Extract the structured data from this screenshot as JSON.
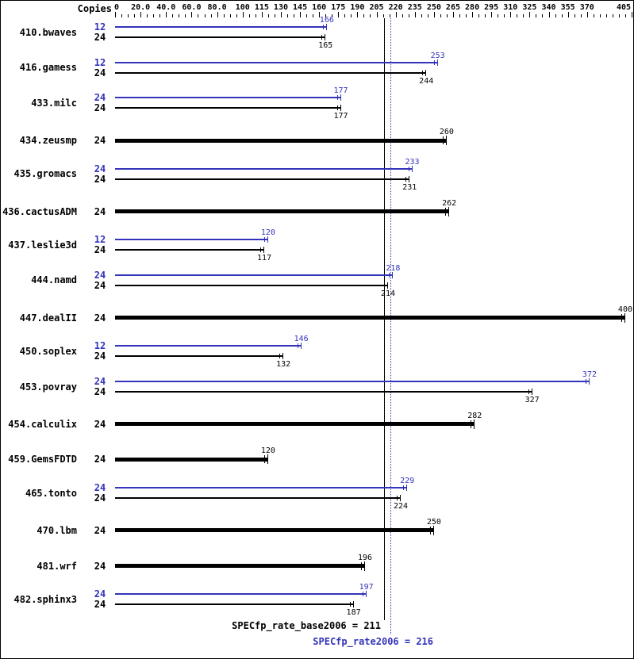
{
  "chart_data": {
    "type": "bar",
    "orientation": "horizontal",
    "copies_header": "Copies",
    "axis": {
      "min": 0,
      "max": 405,
      "major_ticks": [
        0,
        20,
        40,
        60,
        80,
        100,
        115,
        130,
        145,
        160,
        175,
        190,
        205,
        220,
        235,
        250,
        265,
        280,
        295,
        310,
        325,
        340,
        355,
        370,
        405
      ],
      "tick_labels": [
        "0",
        "20.0",
        "40.0",
        "60.0",
        "80.0",
        "100",
        "115",
        "130",
        "145",
        "160",
        "175",
        "190",
        "205",
        "220",
        "235",
        "250",
        "265",
        "280",
        "295",
        "310",
        "325",
        "340",
        "355",
        "370",
        "405"
      ],
      "minor_tick_step": 5,
      "grid": false
    },
    "series_legend": {
      "peak_color": "#3333bb",
      "base_color": "#000000"
    },
    "benchmarks": [
      {
        "name": "410.bwaves",
        "peak": {
          "copies": "12",
          "value": 166
        },
        "base": {
          "copies": "24",
          "value": 165
        }
      },
      {
        "name": "416.gamess",
        "peak": {
          "copies": "12",
          "value": 253
        },
        "base": {
          "copies": "24",
          "value": 244
        }
      },
      {
        "name": "433.milc",
        "peak": {
          "copies": "24",
          "value": 177
        },
        "base": {
          "copies": "24",
          "value": 177
        }
      },
      {
        "name": "434.zeusmp",
        "peak": null,
        "base": {
          "copies": "24",
          "value": 260
        }
      },
      {
        "name": "435.gromacs",
        "peak": {
          "copies": "24",
          "value": 233
        },
        "base": {
          "copies": "24",
          "value": 231
        }
      },
      {
        "name": "436.cactusADM",
        "peak": null,
        "base": {
          "copies": "24",
          "value": 262
        }
      },
      {
        "name": "437.leslie3d",
        "peak": {
          "copies": "12",
          "value": 120
        },
        "base": {
          "copies": "24",
          "value": 117
        }
      },
      {
        "name": "444.namd",
        "peak": {
          "copies": "24",
          "value": 218
        },
        "base": {
          "copies": "24",
          "value": 214
        }
      },
      {
        "name": "447.dealII",
        "peak": null,
        "base": {
          "copies": "24",
          "value": 400
        }
      },
      {
        "name": "450.soplex",
        "peak": {
          "copies": "12",
          "value": 146
        },
        "base": {
          "copies": "24",
          "value": 132
        }
      },
      {
        "name": "453.povray",
        "peak": {
          "copies": "24",
          "value": 372
        },
        "base": {
          "copies": "24",
          "value": 327
        }
      },
      {
        "name": "454.calculix",
        "peak": null,
        "base": {
          "copies": "24",
          "value": 282
        }
      },
      {
        "name": "459.GemsFDTD",
        "peak": null,
        "base": {
          "copies": "24",
          "value": 120
        }
      },
      {
        "name": "465.tonto",
        "peak": {
          "copies": "24",
          "value": 229
        },
        "base": {
          "copies": "24",
          "value": 224
        }
      },
      {
        "name": "470.lbm",
        "peak": null,
        "base": {
          "copies": "24",
          "value": 250
        }
      },
      {
        "name": "481.wrf",
        "peak": null,
        "base": {
          "copies": "24",
          "value": 196
        }
      },
      {
        "name": "482.sphinx3",
        "peak": {
          "copies": "24",
          "value": 197
        },
        "base": {
          "copies": "24",
          "value": 187
        }
      }
    ],
    "reference_lines": [
      {
        "name": "base",
        "label": "SPECfp_rate_base2006 = 211",
        "value": 211,
        "style": "solid",
        "color": "#000000"
      },
      {
        "name": "peak",
        "label": "SPECfp_rate2006 = 216",
        "value": 216,
        "style": "dotted",
        "color": "#3333bb"
      }
    ]
  }
}
